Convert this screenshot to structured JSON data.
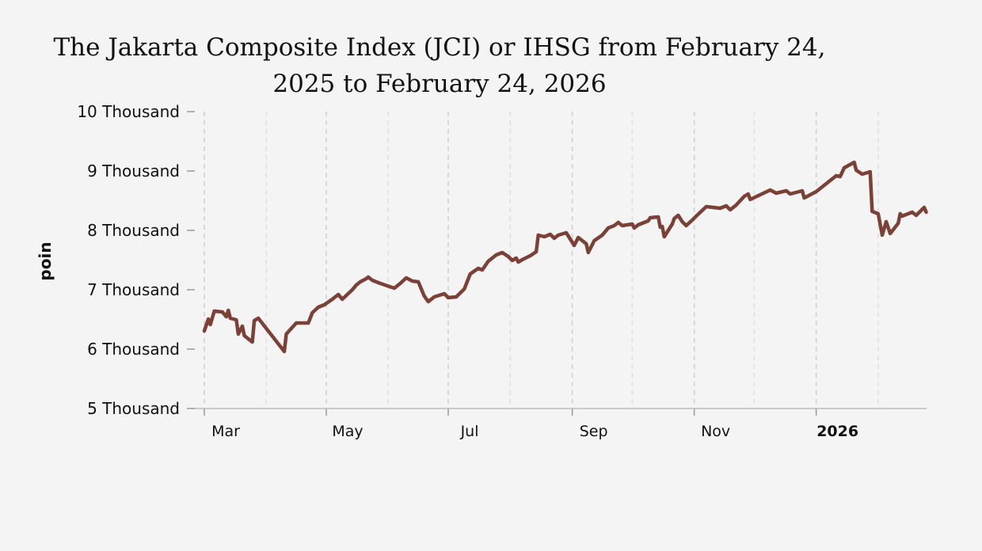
{
  "chart_data": {
    "type": "line",
    "title_line1": "The Jakarta Composite Index (JCI) or IHSG from February 24,",
    "title_line2": "2025 to February 24, 2026",
    "xlabel": "",
    "ylabel": "poin",
    "ylim": [
      5000,
      10000
    ],
    "y_ticks": [
      {
        "value": 5000,
        "label": "5 Thousand"
      },
      {
        "value": 6000,
        "label": "6 Thousand"
      },
      {
        "value": 7000,
        "label": "7 Thousand"
      },
      {
        "value": 8000,
        "label": "8 Thousand"
      },
      {
        "value": 9000,
        "label": "9 Thousand"
      },
      {
        "value": 10000,
        "label": "10 Thousand"
      }
    ],
    "x_unit": "days since 2025-03-01",
    "xlim": [
      0,
      361
    ],
    "x_major_ticks": [
      {
        "value": 0,
        "label": "Mar",
        "bold": false
      },
      {
        "value": 61,
        "label": "May",
        "bold": false
      },
      {
        "value": 122,
        "label": "Jul",
        "bold": false
      },
      {
        "value": 184,
        "label": "Sep",
        "bold": false
      },
      {
        "value": 245,
        "label": "Nov",
        "bold": false
      },
      {
        "value": 306,
        "label": "2026",
        "bold": true
      }
    ],
    "x_minor_ticks": [
      31,
      92,
      153,
      214,
      275,
      337
    ],
    "line_color": "#7b4036",
    "series": [
      {
        "name": "IHSG",
        "x": [
          0,
          2,
          3,
          5,
          9,
          11,
          12,
          13,
          16,
          17,
          19,
          20,
          24,
          25,
          27,
          40,
          41,
          42,
          46,
          52,
          54,
          57,
          60,
          64,
          67,
          69,
          74,
          76,
          78,
          81,
          82,
          84,
          88,
          95,
          98,
          101,
          104,
          107,
          109,
          110,
          112,
          115,
          120,
          122,
          126,
          130,
          133,
          137,
          139,
          142,
          146,
          149,
          152,
          154,
          156,
          157,
          159,
          163,
          166,
          167,
          170,
          173,
          175,
          177,
          181,
          185,
          187,
          191,
          192,
          195,
          199,
          202,
          205,
          207,
          209,
          214,
          215,
          217,
          222,
          223,
          227,
          228,
          229,
          230,
          234,
          235,
          237,
          239,
          241,
          244,
          246,
          251,
          258,
          261,
          263,
          266,
          270,
          272,
          273,
          278,
          283,
          286,
          291,
          293,
          299,
          300,
          306,
          310,
          316,
          318,
          320,
          325,
          326,
          329,
          333,
          334,
          337,
          339,
          341,
          343,
          347,
          348,
          349,
          354,
          356,
          360,
          361
        ],
        "y": [
          6307,
          6507,
          6413,
          6640,
          6627,
          6547,
          6653,
          6520,
          6493,
          6253,
          6387,
          6227,
          6120,
          6480,
          6520,
          5960,
          6253,
          6293,
          6440,
          6440,
          6613,
          6707,
          6747,
          6840,
          6920,
          6840,
          7000,
          7080,
          7133,
          7187,
          7213,
          7160,
          7107,
          7027,
          7107,
          7200,
          7147,
          7133,
          6973,
          6893,
          6800,
          6880,
          6933,
          6867,
          6880,
          7013,
          7267,
          7360,
          7333,
          7480,
          7587,
          7627,
          7560,
          7493,
          7533,
          7467,
          7507,
          7573,
          7640,
          7920,
          7893,
          7933,
          7867,
          7920,
          7960,
          7747,
          7880,
          7773,
          7627,
          7827,
          7920,
          8040,
          8080,
          8133,
          8080,
          8107,
          8040,
          8093,
          8160,
          8213,
          8227,
          8053,
          8067,
          7893,
          8107,
          8200,
          8253,
          8147,
          8080,
          8173,
          8240,
          8400,
          8373,
          8413,
          8347,
          8427,
          8573,
          8613,
          8520,
          8600,
          8680,
          8627,
          8667,
          8613,
          8667,
          8547,
          8653,
          8760,
          8920,
          8907,
          9053,
          9147,
          9013,
          8947,
          8987,
          8320,
          8280,
          7920,
          8147,
          7947,
          8120,
          8280,
          8240,
          8307,
          8253,
          8387,
          8307
        ]
      }
    ]
  }
}
